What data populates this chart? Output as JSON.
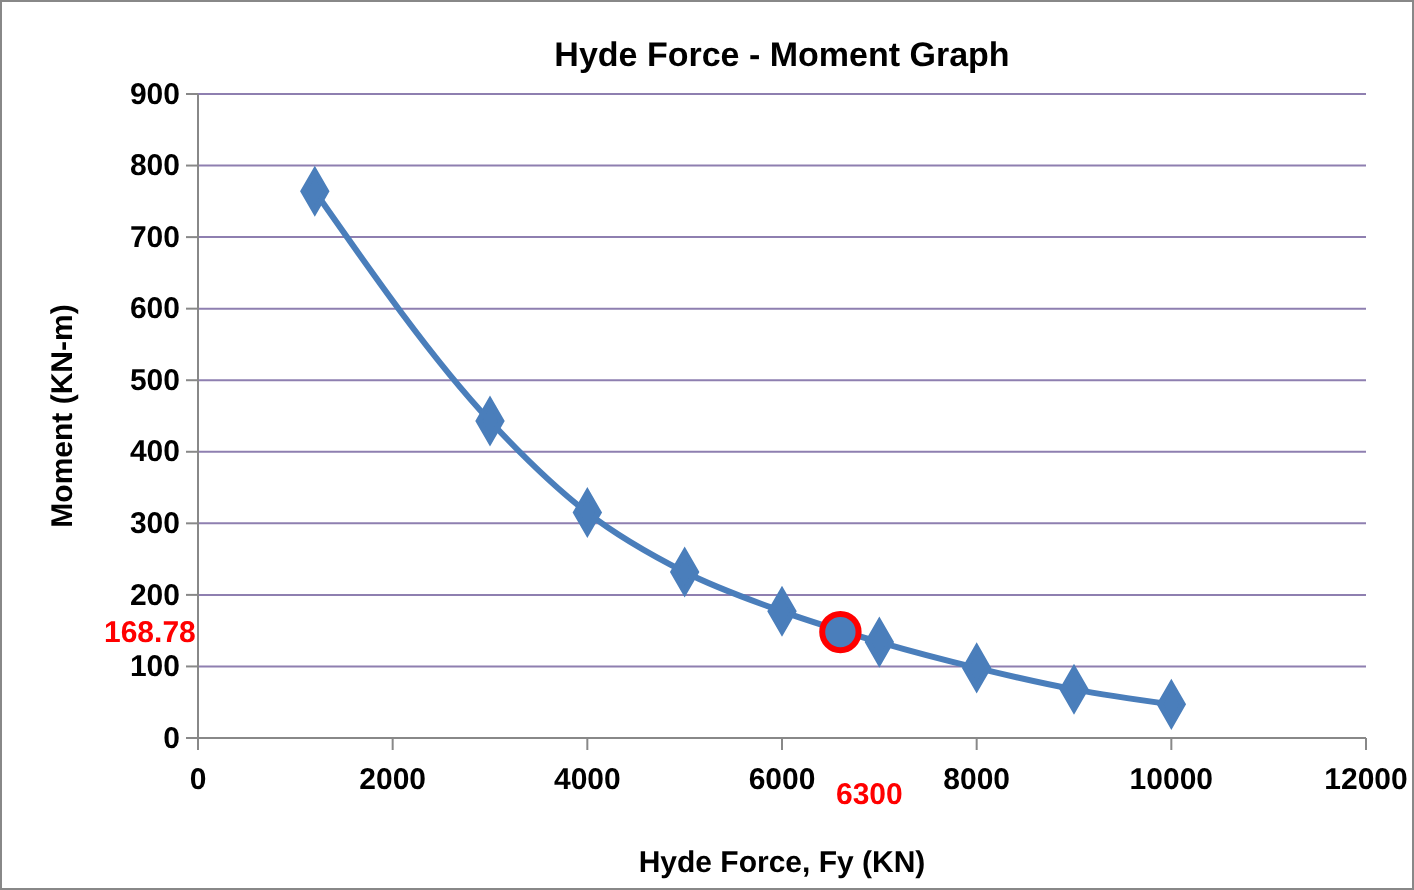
{
  "chart_data": {
    "type": "line",
    "title": "Hyde Force - Moment Graph",
    "xlabel": "Hyde Force, Fy (KN)",
    "ylabel": "Moment (KN-m)",
    "xlim": [
      0,
      12000
    ],
    "xticks": [
      0,
      2000,
      4000,
      6000,
      8000,
      10000,
      12000
    ],
    "ylim": [
      0,
      900
    ],
    "yticks": [
      0,
      100,
      200,
      300,
      400,
      500,
      600,
      700,
      800,
      900
    ],
    "grid": "y",
    "marker": "diamond",
    "line_style": "solid",
    "series": [
      {
        "color": "#4a7ebb",
        "x": [
          1200,
          3000,
          4000,
          5000,
          6000,
          7000,
          8000,
          9000,
          10000
        ],
        "values": [
          764,
          443,
          315,
          232,
          177,
          134,
          98,
          68,
          47
        ]
      },
      {
        "type": "scatter",
        "color": "#ff0000",
        "marker": "circle",
        "x": [
          6600
        ],
        "values": [
          148
        ]
      }
    ],
    "annotations": [
      "168.78",
      "6300"
    ]
  }
}
